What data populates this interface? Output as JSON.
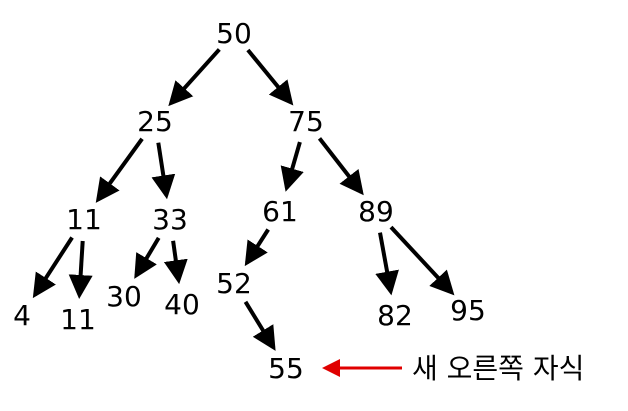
{
  "colors": {
    "node_text": "#000000",
    "edge": "#000000",
    "highlight_arrow": "#e00000",
    "background": "#ffffff"
  },
  "tree": {
    "nodes": [
      {
        "id": "n50",
        "label": "50"
      },
      {
        "id": "n25",
        "label": "25"
      },
      {
        "id": "n75",
        "label": "75"
      },
      {
        "id": "n11a",
        "label": "11"
      },
      {
        "id": "n33",
        "label": "33"
      },
      {
        "id": "n61",
        "label": "61"
      },
      {
        "id": "n89",
        "label": "89"
      },
      {
        "id": "n4",
        "label": "4"
      },
      {
        "id": "n11b",
        "label": "11"
      },
      {
        "id": "n30",
        "label": "30"
      },
      {
        "id": "n40",
        "label": "40"
      },
      {
        "id": "n52",
        "label": "52"
      },
      {
        "id": "n82",
        "label": "82"
      },
      {
        "id": "n95",
        "label": "95"
      },
      {
        "id": "n55",
        "label": "55"
      }
    ],
    "edges": [
      {
        "from": "n50",
        "to": "n25"
      },
      {
        "from": "n50",
        "to": "n75"
      },
      {
        "from": "n25",
        "to": "n11a"
      },
      {
        "from": "n25",
        "to": "n33"
      },
      {
        "from": "n75",
        "to": "n61"
      },
      {
        "from": "n75",
        "to": "n89"
      },
      {
        "from": "n11a",
        "to": "n4"
      },
      {
        "from": "n11a",
        "to": "n11b"
      },
      {
        "from": "n33",
        "to": "n30"
      },
      {
        "from": "n33",
        "to": "n40"
      },
      {
        "from": "n61",
        "to": "n52"
      },
      {
        "from": "n89",
        "to": "n82"
      },
      {
        "from": "n89",
        "to": "n95"
      },
      {
        "from": "n52",
        "to": "n55"
      }
    ]
  },
  "annotation": {
    "label": "새 오른쪽 자식",
    "points_to": "n55"
  }
}
